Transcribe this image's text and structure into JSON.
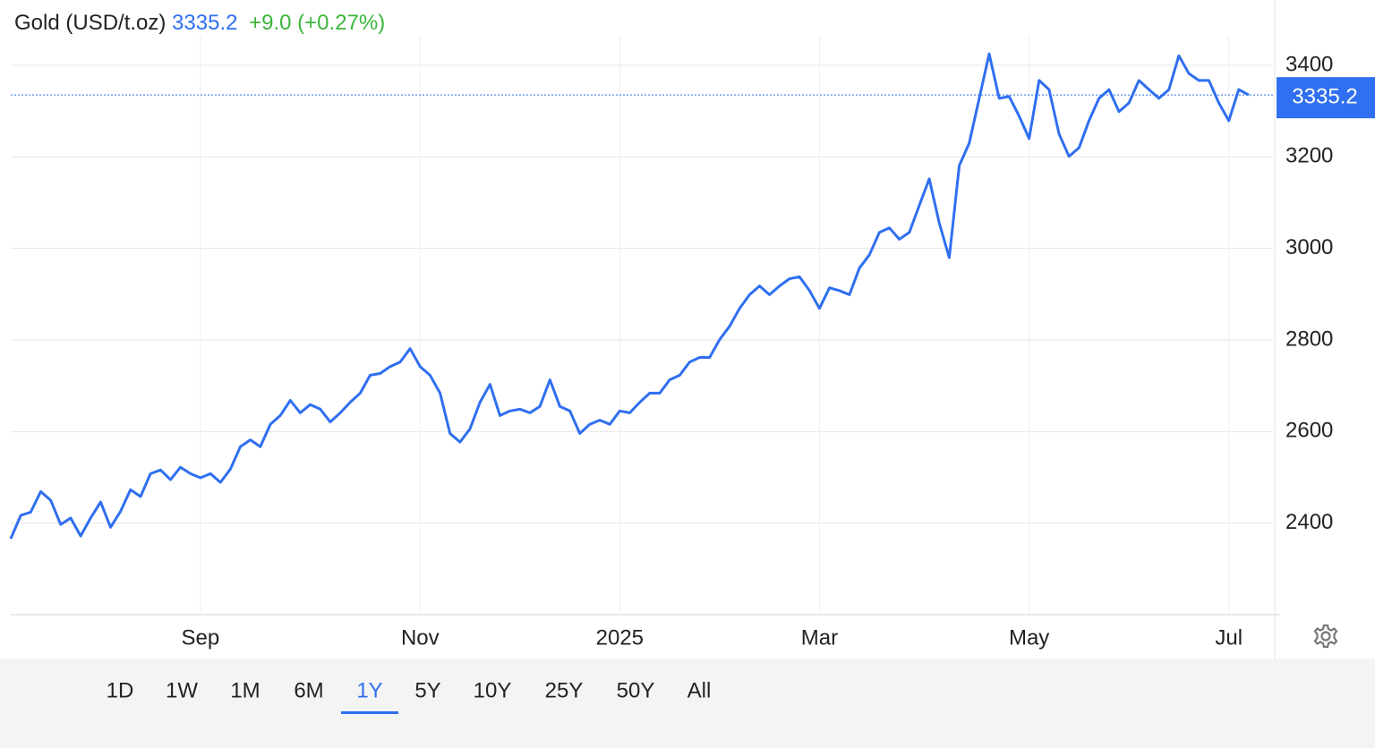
{
  "chart_data": {
    "type": "line",
    "title": "Gold (USD/t.oz)",
    "last_value": 3335.2,
    "change": "+9.0 (+0.27%)",
    "categories": [
      null,
      null,
      null,
      null,
      null,
      null,
      null,
      null,
      null,
      null,
      null,
      null,
      null,
      null,
      null,
      null,
      null,
      null,
      null,
      "Sep",
      null,
      null,
      null,
      null,
      null,
      null,
      null,
      null,
      null,
      null,
      null,
      null,
      null,
      null,
      null,
      null,
      null,
      null,
      null,
      null,
      null,
      "Nov",
      null,
      null,
      null,
      null,
      null,
      null,
      null,
      null,
      null,
      null,
      null,
      null,
      null,
      null,
      null,
      null,
      null,
      null,
      null,
      "2025",
      null,
      null,
      null,
      null,
      null,
      null,
      null,
      null,
      null,
      null,
      null,
      null,
      null,
      null,
      null,
      null,
      null,
      null,
      null,
      "Mar",
      null,
      null,
      null,
      null,
      null,
      null,
      null,
      null,
      null,
      null,
      null,
      null,
      null,
      null,
      null,
      null,
      null,
      null,
      null,
      null,
      "May",
      null,
      null,
      null,
      null,
      null,
      null,
      null,
      null,
      null,
      null,
      null,
      null,
      null,
      null,
      null,
      null,
      null,
      null,
      null,
      "Jul",
      null,
      null
    ],
    "values": [
      2366,
      2417,
      2424,
      2469,
      2450,
      2397,
      2411,
      2372,
      2411,
      2446,
      2391,
      2426,
      2473,
      2458,
      2508,
      2516,
      2495,
      2522,
      2508,
      2499,
      2508,
      2489,
      2518,
      2567,
      2582,
      2567,
      2616,
      2635,
      2668,
      2641,
      2659,
      2649,
      2621,
      2641,
      2664,
      2684,
      2723,
      2727,
      2742,
      2752,
      2781,
      2742,
      2723,
      2684,
      2596,
      2577,
      2606,
      2664,
      2703,
      2635,
      2645,
      2649,
      2641,
      2655,
      2713,
      2655,
      2645,
      2596,
      2616,
      2625,
      2616,
      2645,
      2641,
      2664,
      2684,
      2684,
      2713,
      2723,
      2752,
      2762,
      2762,
      2801,
      2830,
      2869,
      2899,
      2918,
      2899,
      2918,
      2934,
      2938,
      2908,
      2869,
      2914,
      2908,
      2899,
      2957,
      2986,
      3035,
      3045,
      3020,
      3035,
      3094,
      3152,
      3055,
      2980,
      3181,
      3230,
      3328,
      3425,
      3328,
      3332,
      3289,
      3240,
      3367,
      3347,
      3250,
      3201,
      3220,
      3279,
      3328,
      3347,
      3299,
      3318,
      3367,
      3347,
      3328,
      3347,
      3421,
      3382,
      3367,
      3367,
      3318,
      3279,
      3347,
      3335.2
    ],
    "color": "#2f6ff0",
    "ylim": [
      2200,
      3445
    ],
    "yticks": [
      2400,
      2600,
      2800,
      3000,
      3200,
      3400
    ],
    "grid": true
  },
  "ui": {
    "ranges": [
      "1D",
      "1W",
      "1M",
      "6M",
      "1Y",
      "5Y",
      "10Y",
      "25Y",
      "50Y",
      "All"
    ],
    "selected": 4
  }
}
